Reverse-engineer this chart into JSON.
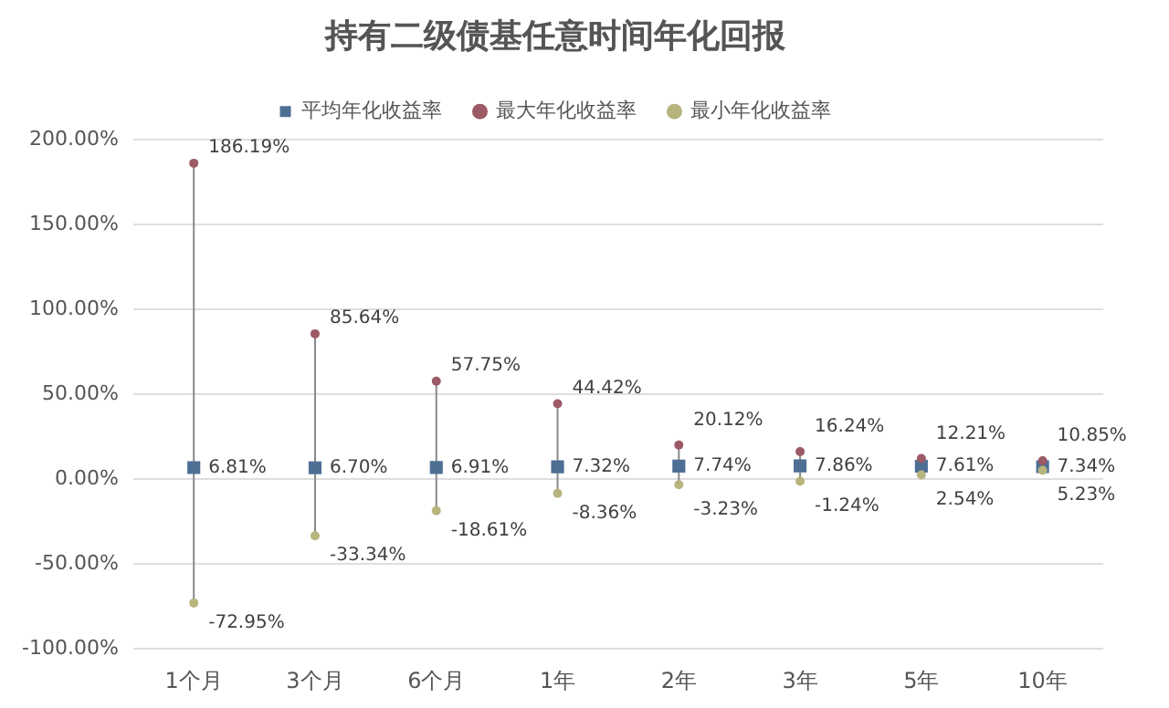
{
  "chart_data": {
    "type": "scatter",
    "title": "持有二级债基任意时间年化回报",
    "categories": [
      "1个月",
      "3个月",
      "6个月",
      "1年",
      "2年",
      "3年",
      "5年",
      "10年"
    ],
    "series": [
      {
        "name": "平均年化收益率",
        "color": "#4e6f94",
        "marker": "square",
        "values": [
          6.81,
          6.7,
          6.91,
          7.32,
          7.74,
          7.86,
          7.61,
          7.34
        ],
        "value_labels": [
          "6.81%",
          "6.70%",
          "6.91%",
          "7.32%",
          "7.74%",
          "7.86%",
          "7.61%",
          "7.34%"
        ]
      },
      {
        "name": "最大年化收益率",
        "color": "#9b5a66",
        "marker": "circle",
        "values": [
          186.19,
          85.64,
          57.75,
          44.42,
          20.12,
          16.24,
          12.21,
          10.85
        ],
        "value_labels": [
          "186.19%",
          "85.64%",
          "57.75%",
          "44.42%",
          "20.12%",
          "16.24%",
          "12.21%",
          "10.85%"
        ]
      },
      {
        "name": "最小年化收益率",
        "color": "#b8b47e",
        "marker": "circle",
        "values": [
          -72.95,
          -33.34,
          -18.61,
          -8.36,
          -3.23,
          -1.24,
          2.54,
          5.23
        ],
        "value_labels": [
          "-72.95%",
          "-33.34%",
          "-18.61%",
          "-8.36%",
          "-3.23%",
          "-1.24%",
          "2.54%",
          "5.23%"
        ]
      }
    ],
    "ylim": [
      -100,
      200
    ],
    "yticks": [
      {
        "value": -100,
        "label": "-100.00%"
      },
      {
        "value": -50,
        "label": "-50.00%"
      },
      {
        "value": 0,
        "label": "0.00%"
      },
      {
        "value": 50,
        "label": "50.00%"
      },
      {
        "value": 100,
        "label": "100.00%"
      },
      {
        "value": 150,
        "label": "150.00%"
      },
      {
        "value": 200,
        "label": "200.00%"
      }
    ],
    "grid": "y",
    "legend": "top"
  }
}
